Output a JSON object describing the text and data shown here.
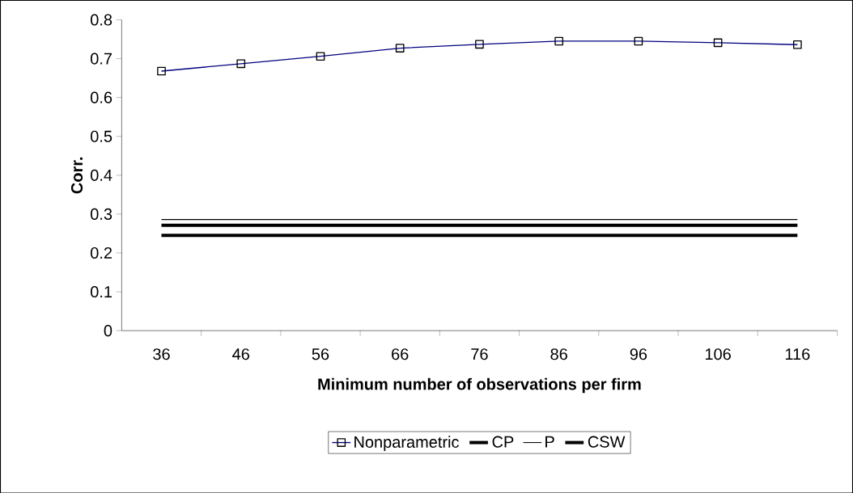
{
  "chart_data": {
    "type": "line",
    "xlabel": "Minimum number of observations per firm",
    "ylabel": "Corr.",
    "categories": [
      "36",
      "46",
      "56",
      "66",
      "76",
      "86",
      "96",
      "106",
      "116"
    ],
    "series": [
      {
        "name": "Nonparametric",
        "color": "#000080",
        "marker": "square",
        "values": [
          0.668,
          0.687,
          0.706,
          0.727,
          0.737,
          0.745,
          0.745,
          0.741,
          0.736
        ]
      },
      {
        "name": "CP",
        "color": "#000000",
        "marker": "none",
        "values": [
          0.271,
          0.271,
          0.271,
          0.271,
          0.271,
          0.271,
          0.271,
          0.271,
          0.271
        ]
      },
      {
        "name": "P",
        "color": "#010101",
        "marker": "none",
        "values": [
          0.286,
          0.286,
          0.286,
          0.286,
          0.286,
          0.286,
          0.286,
          0.286,
          0.286
        ]
      },
      {
        "name": "CSW",
        "color": "#020202",
        "marker": "none",
        "values": [
          0.245,
          0.245,
          0.245,
          0.245,
          0.245,
          0.245,
          0.245,
          0.245,
          0.245
        ]
      }
    ],
    "ylim": [
      0,
      0.8
    ],
    "yticks": [
      0,
      0.1,
      0.2,
      0.3,
      0.4,
      0.5,
      0.6,
      0.7,
      0.8
    ],
    "grid": false,
    "legend": "bottom"
  }
}
